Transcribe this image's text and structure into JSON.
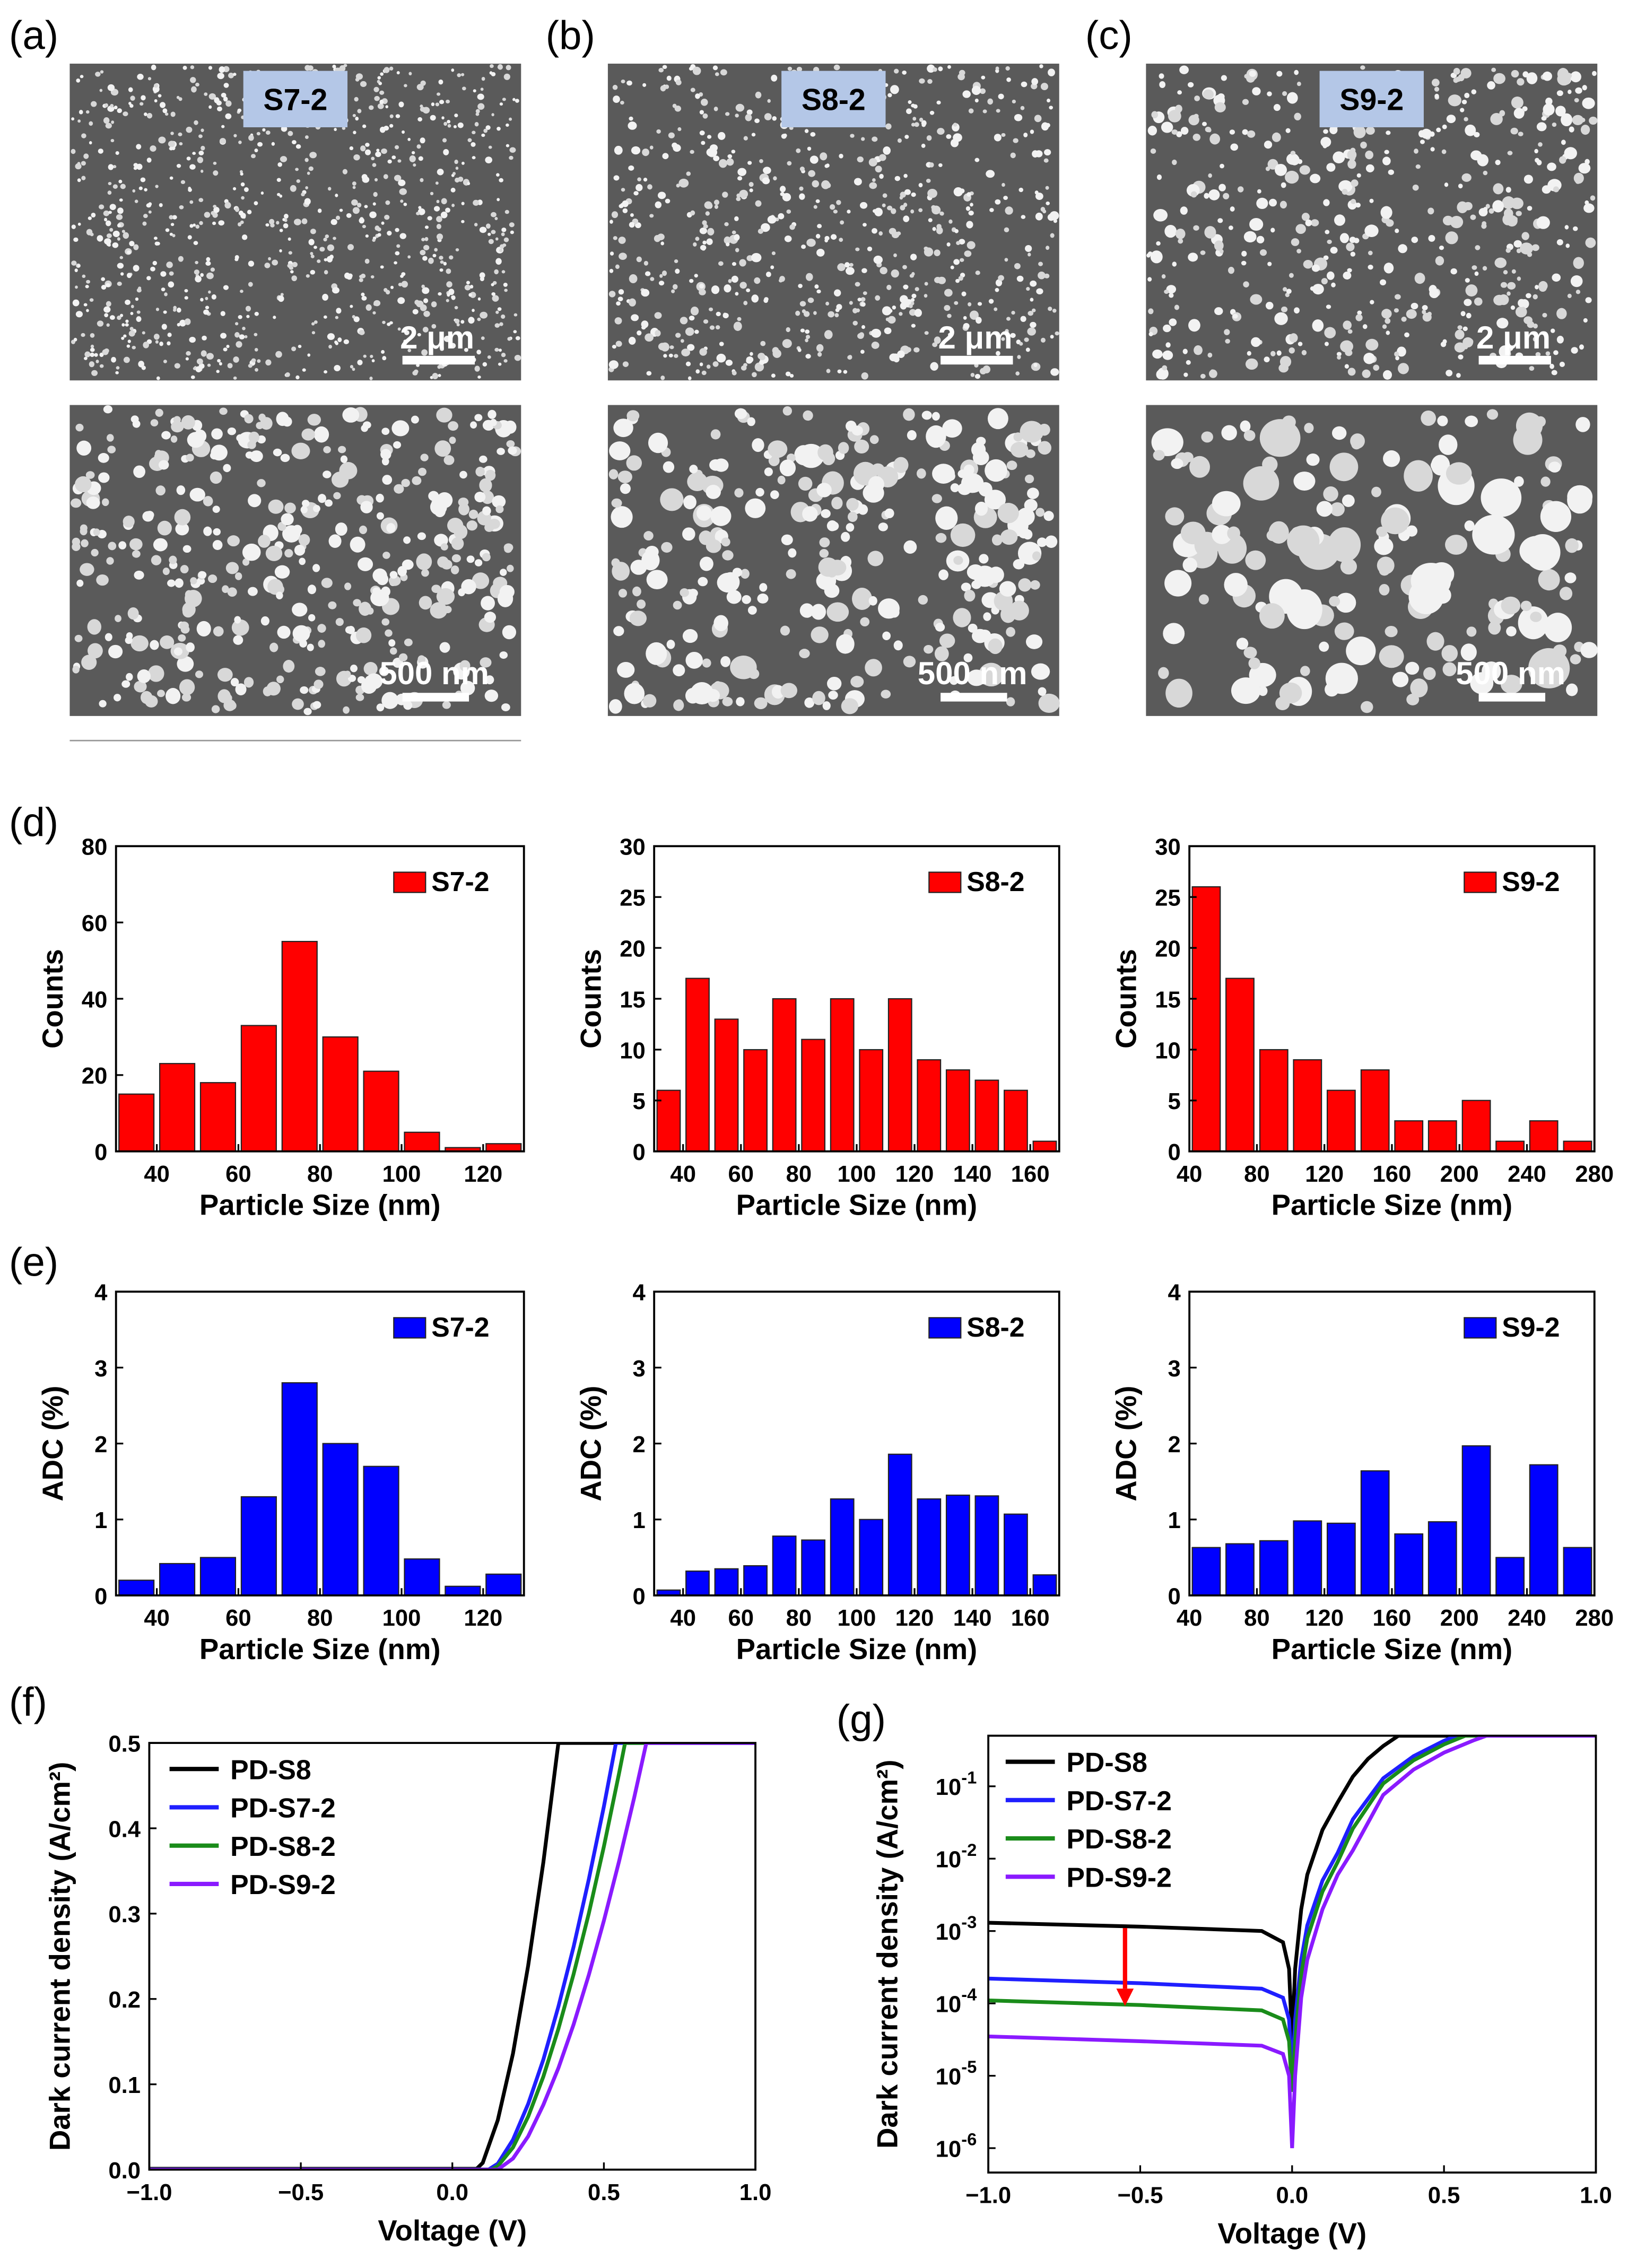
{
  "panel_labels": {
    "a": "(a)",
    "b": "(b)",
    "c": "(c)",
    "d": "(d)",
    "e": "(e)",
    "f": "(f)",
    "g": "(g)"
  },
  "sem": [
    {
      "sample": "S7-2",
      "top_scale": "2 μm",
      "bottom_scale": "500 nm"
    },
    {
      "sample": "S8-2",
      "top_scale": "2 μm",
      "bottom_scale": "500 nm"
    },
    {
      "sample": "S9-2",
      "top_scale": "2 μm",
      "bottom_scale": "500 nm"
    }
  ],
  "chart_data": [
    {
      "id": "d1",
      "panel": "d",
      "type": "bar",
      "legend": "S7-2",
      "legend_position": "top-right",
      "xlabel": "Particle Size (nm)",
      "ylabel": "Counts",
      "bin_start": 30,
      "bin_width": 10,
      "values": [
        15,
        23,
        18,
        33,
        55,
        30,
        21,
        5,
        1,
        2
      ],
      "xlim": [
        30,
        130
      ],
      "xticks": [
        40,
        60,
        80,
        100,
        120
      ],
      "ylim": [
        0,
        80
      ],
      "yticks": [
        0,
        20,
        40,
        60,
        80
      ],
      "color": "#ff0000"
    },
    {
      "id": "d2",
      "panel": "d",
      "type": "bar",
      "legend": "S8-2",
      "legend_position": "top-right",
      "xlabel": "Particle Size (nm)",
      "ylabel": "Counts",
      "bin_start": 30,
      "bin_width": 10,
      "values": [
        6,
        17,
        13,
        10,
        15,
        11,
        15,
        10,
        15,
        9,
        8,
        7,
        6,
        1
      ],
      "xlim": [
        30,
        170
      ],
      "xticks": [
        40,
        60,
        80,
        100,
        120,
        140,
        160
      ],
      "ylim": [
        0,
        30
      ],
      "yticks": [
        0,
        5,
        10,
        15,
        20,
        25,
        30
      ],
      "color": "#ff0000"
    },
    {
      "id": "d3",
      "panel": "d",
      "type": "bar",
      "legend": "S9-2",
      "legend_position": "top-right",
      "xlabel": "Particle Size (nm)",
      "ylabel": "Counts",
      "bin_start": 40,
      "bin_width": 20,
      "values": [
        26,
        17,
        10,
        9,
        6,
        8,
        3,
        3,
        5,
        1,
        3,
        1
      ],
      "xlim": [
        40,
        280
      ],
      "xticks": [
        40,
        80,
        120,
        160,
        200,
        240,
        280
      ],
      "ylim": [
        0,
        30
      ],
      "yticks": [
        0,
        5,
        10,
        15,
        20,
        25,
        30
      ],
      "color": "#ff0000"
    },
    {
      "id": "e1",
      "panel": "e",
      "type": "bar",
      "legend": "S7-2",
      "legend_position": "top-right",
      "xlabel": "Particle Size (nm)",
      "ylabel": "ADC (%)",
      "bin_start": 30,
      "bin_width": 10,
      "values": [
        0.2,
        0.42,
        0.5,
        1.3,
        2.8,
        2.0,
        1.7,
        0.48,
        0.12,
        0.28
      ],
      "xlim": [
        30,
        130
      ],
      "xticks": [
        40,
        60,
        80,
        100,
        120
      ],
      "ylim": [
        0,
        4
      ],
      "yticks": [
        0,
        1,
        2,
        3,
        4
      ],
      "color": "#0000ff"
    },
    {
      "id": "e2",
      "panel": "e",
      "type": "bar",
      "legend": "S8-2",
      "legend_position": "top-right",
      "xlabel": "Particle Size (nm)",
      "ylabel": "ADC (%)",
      "bin_start": 30,
      "bin_width": 10,
      "values": [
        0.07,
        0.32,
        0.35,
        0.39,
        0.78,
        0.73,
        1.27,
        1.0,
        1.86,
        1.27,
        1.32,
        1.31,
        1.07,
        0.27
      ],
      "xlim": [
        30,
        170
      ],
      "xticks": [
        40,
        60,
        80,
        100,
        120,
        140,
        160
      ],
      "ylim": [
        0,
        4
      ],
      "yticks": [
        0,
        1,
        2,
        3,
        4
      ],
      "color": "#0000ff"
    },
    {
      "id": "e3",
      "panel": "e",
      "type": "bar",
      "legend": "S9-2",
      "legend_position": "top-right",
      "xlabel": "Particle Size (nm)",
      "ylabel": "ADC (%)",
      "bin_start": 40,
      "bin_width": 20,
      "values": [
        0.63,
        0.68,
        0.72,
        0.98,
        0.95,
        1.64,
        0.81,
        0.97,
        1.97,
        0.5,
        1.72,
        0.63
      ],
      "xlim": [
        40,
        280
      ],
      "xticks": [
        40,
        80,
        120,
        160,
        200,
        240,
        280
      ],
      "ylim": [
        0,
        4
      ],
      "yticks": [
        0,
        1,
        2,
        3,
        4
      ],
      "color": "#0000ff"
    },
    {
      "id": "f",
      "panel": "f",
      "type": "line",
      "yscale": "linear",
      "legend_position": "top-left",
      "xlabel": "Voltage (V)",
      "ylabel": "Dark current density (A/cm²)",
      "xlim": [
        -1,
        1
      ],
      "ylim": [
        0,
        0.5
      ],
      "xticks": [
        -1,
        -0.5,
        0,
        0.5,
        1
      ],
      "xtick_labels": [
        "−1.0",
        "−0.5",
        "0.0",
        "0.5",
        "1.0"
      ],
      "yticks": [
        0,
        0.1,
        0.2,
        0.3,
        0.4,
        0.5
      ],
      "ytick_labels": [
        "0.0",
        "0.1",
        "0.2",
        "0.3",
        "0.4",
        "0.5"
      ],
      "series": [
        {
          "name": "PD-S8",
          "color": "#000000",
          "x": [
            -1,
            0,
            0.08,
            0.1,
            0.15,
            0.2,
            0.25,
            0.3,
            0.35,
            1
          ],
          "y": [
            0.001,
            0.001,
            0.001,
            0.008,
            0.058,
            0.136,
            0.239,
            0.36,
            0.5,
            0.5
          ]
        },
        {
          "name": "PD-S7-2",
          "color": "#1f1fff",
          "x": [
            -1,
            0,
            0.12,
            0.15,
            0.2,
            0.25,
            0.3,
            0.35,
            0.4,
            0.45,
            0.5,
            0.54,
            1
          ],
          "y": [
            0.0002,
            0.0002,
            0.0002,
            0.007,
            0.035,
            0.077,
            0.129,
            0.191,
            0.261,
            0.34,
            0.426,
            0.5,
            0.5
          ]
        },
        {
          "name": "PD-S8-2",
          "color": "#1a8c1a",
          "x": [
            -1,
            0,
            0.13,
            0.15,
            0.2,
            0.25,
            0.3,
            0.35,
            0.4,
            0.45,
            0.5,
            0.55,
            0.57,
            1
          ],
          "y": [
            0.0001,
            0.0001,
            0.0001,
            0.004,
            0.026,
            0.062,
            0.109,
            0.165,
            0.229,
            0.3,
            0.379,
            0.464,
            0.5,
            0.5
          ]
        },
        {
          "name": "PD-S9-2",
          "color": "#8a1aff",
          "x": [
            -1,
            0,
            0.15,
            0.2,
            0.25,
            0.3,
            0.35,
            0.4,
            0.45,
            0.5,
            0.55,
            0.6,
            0.64,
            1
          ],
          "y": [
            3e-05,
            3e-05,
            3e-05,
            0.013,
            0.039,
            0.076,
            0.119,
            0.17,
            0.228,
            0.292,
            0.361,
            0.436,
            0.5,
            0.5
          ]
        }
      ]
    },
    {
      "id": "g",
      "panel": "g",
      "type": "line",
      "yscale": "log",
      "legend_position": "top-left",
      "xlabel": "Voltage (V)",
      "ylabel": "Dark current density (A/cm²)",
      "xlim": [
        -1,
        1
      ],
      "ylim": [
        4.6e-07,
        0.5
      ],
      "xticks": [
        -1,
        -0.5,
        0,
        0.5,
        1
      ],
      "xtick_labels": [
        "−1.0",
        "−0.5",
        "0.0",
        "0.5",
        "1.0"
      ],
      "yticks": [
        1e-06,
        1e-05,
        0.0001,
        0.001,
        0.01,
        0.1
      ],
      "ytick_exponents": [
        "-6",
        "-5",
        "-4",
        "-3",
        "-2",
        "-1"
      ],
      "ytick_base": "10",
      "annotation": "red downward arrow at V≈−0.55 from PD-S8 to PD-S8-2 level",
      "series": [
        {
          "name": "PD-S8",
          "color": "#000000",
          "x": [
            -1,
            -0.5,
            -0.1,
            -0.03,
            -0.01,
            0,
            0.01,
            0.03,
            0.05,
            0.1,
            0.15,
            0.2,
            0.25,
            0.3,
            0.35,
            1
          ],
          "y": [
            0.0013,
            0.00115,
            0.001,
            0.0007,
            0.0003,
            3e-05,
            0.0003,
            0.002,
            0.006,
            0.025,
            0.06,
            0.136,
            0.239,
            0.36,
            0.5,
            0.5
          ]
        },
        {
          "name": "PD-S7-2",
          "color": "#1f1fff",
          "x": [
            -1,
            -0.5,
            -0.1,
            -0.03,
            -0.01,
            0,
            0.01,
            0.03,
            0.05,
            0.1,
            0.15,
            0.2,
            0.3,
            0.4,
            0.5,
            0.54,
            1
          ],
          "y": [
            0.00022,
            0.00019,
            0.00016,
            0.00012,
            6e-05,
            1e-05,
            6e-05,
            0.0004,
            0.0012,
            0.005,
            0.012,
            0.035,
            0.129,
            0.261,
            0.426,
            0.5,
            0.5
          ]
        },
        {
          "name": "PD-S8-2",
          "color": "#1a8c1a",
          "x": [
            -1,
            -0.5,
            -0.1,
            -0.03,
            -0.01,
            0,
            0.01,
            0.03,
            0.05,
            0.1,
            0.15,
            0.2,
            0.3,
            0.4,
            0.5,
            0.57,
            1
          ],
          "y": [
            0.00011,
            9.5e-05,
            8e-05,
            6e-05,
            3e-05,
            6e-06,
            3e-05,
            0.00025,
            0.0008,
            0.0035,
            0.009,
            0.026,
            0.109,
            0.229,
            0.379,
            0.5,
            0.5
          ]
        },
        {
          "name": "PD-S9-2",
          "color": "#8a1aff",
          "x": [
            -1,
            -0.5,
            -0.1,
            -0.03,
            -0.01,
            0,
            0.01,
            0.03,
            0.05,
            0.1,
            0.15,
            0.2,
            0.3,
            0.4,
            0.5,
            0.6,
            0.64,
            1
          ],
          "y": [
            3.5e-05,
            3e-05,
            2.6e-05,
            2e-05,
            1e-05,
            1e-06,
            1e-05,
            0.00012,
            0.0004,
            0.002,
            0.006,
            0.013,
            0.076,
            0.17,
            0.292,
            0.436,
            0.5,
            0.5
          ]
        }
      ]
    }
  ]
}
